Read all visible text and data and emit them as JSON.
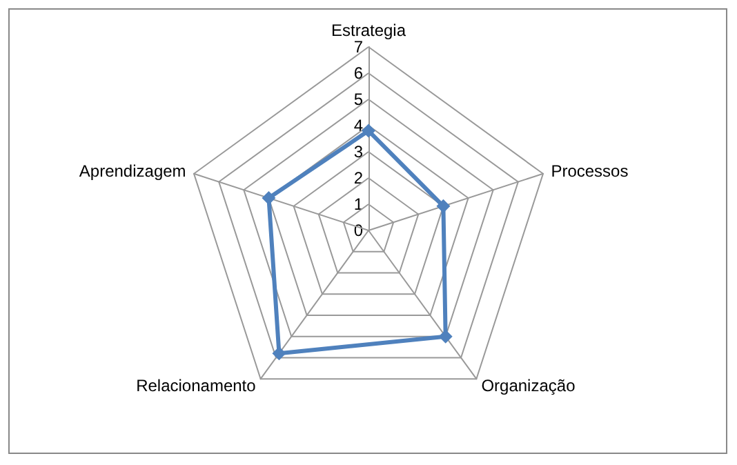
{
  "chart_data": {
    "type": "radar",
    "categories": [
      "Estrategia",
      "Processos",
      "Organização",
      "Relacionamento",
      "Aprendizagem"
    ],
    "series": [
      {
        "color": "#4f81bd",
        "values": [
          3.8,
          3,
          5,
          5.8,
          4
        ]
      }
    ],
    "ylim": [
      0,
      7
    ],
    "yticks": [
      0,
      1,
      2,
      3,
      4,
      5,
      6,
      7
    ],
    "grid": true,
    "marker": "diamond",
    "line_style": "solid"
  }
}
